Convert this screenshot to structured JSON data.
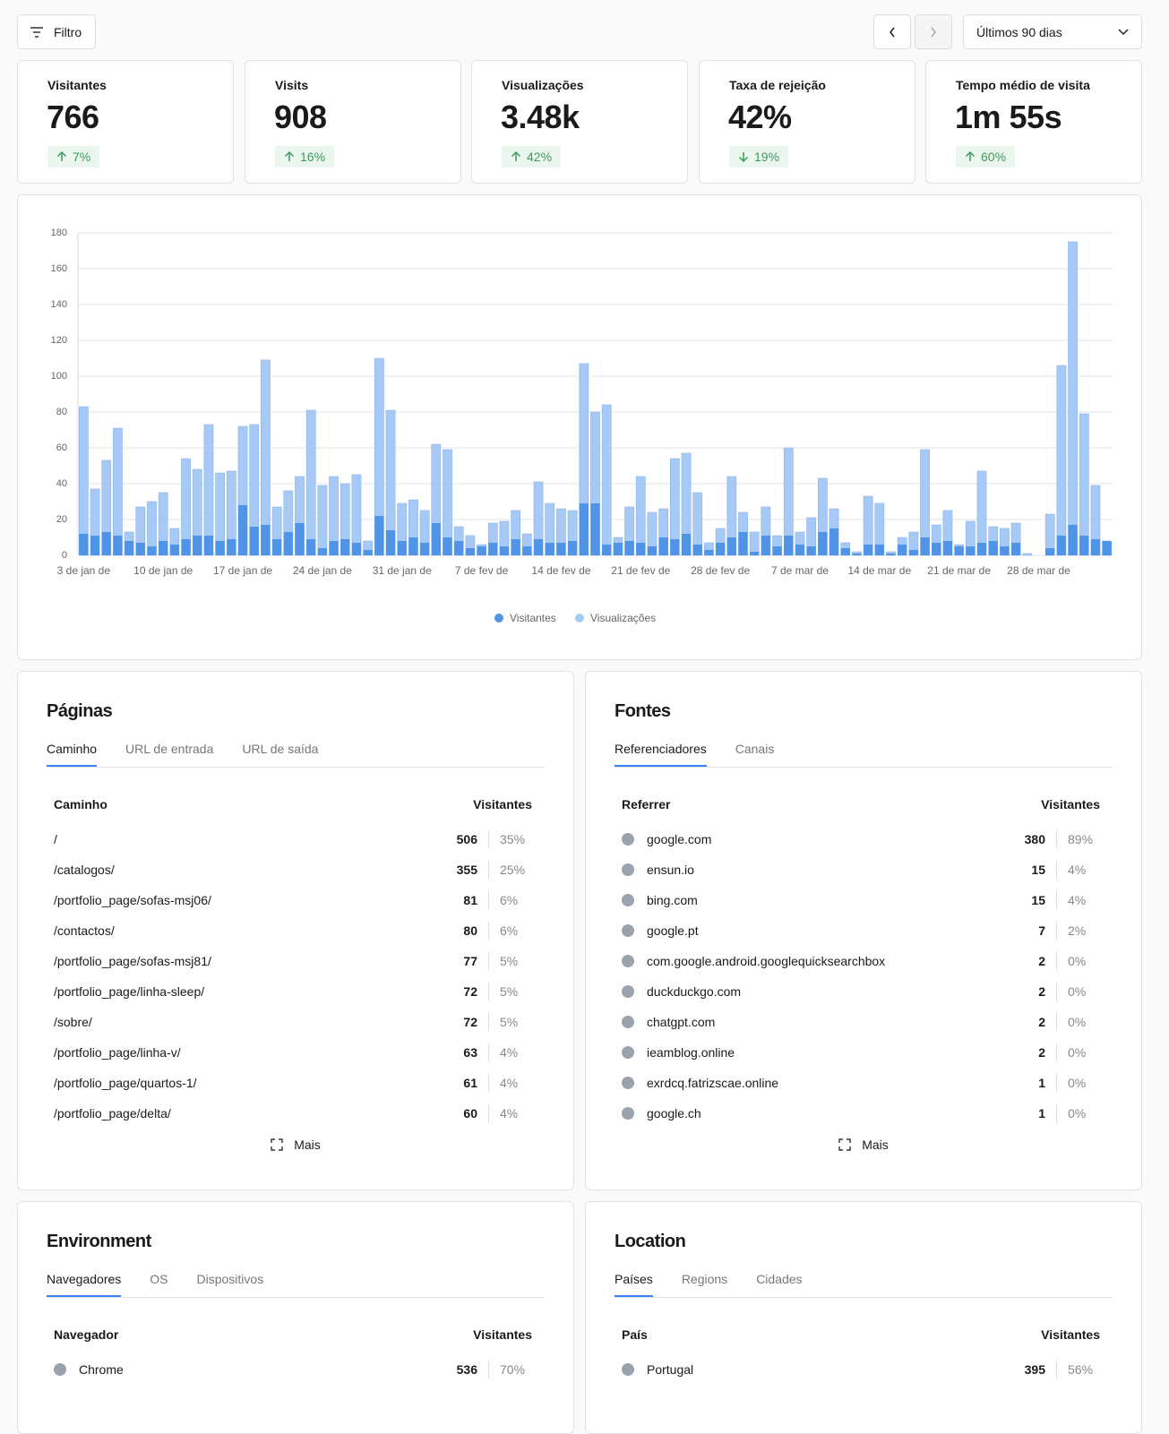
{
  "toolbar": {
    "filter": "Filtro",
    "range": "Últimos 90 dias"
  },
  "metrics": [
    {
      "label": "Visitantes",
      "value": "766",
      "change": "7%",
      "direction": "up"
    },
    {
      "label": "Visits",
      "value": "908",
      "change": "16%",
      "direction": "up"
    },
    {
      "label": "Visualizações",
      "value": "3.48k",
      "change": "42%",
      "direction": "up"
    },
    {
      "label": "Taxa de rejeição",
      "value": "42%",
      "change": "19%",
      "direction": "down"
    },
    {
      "label": "Tempo médio de visita",
      "value": "1m 55s",
      "change": "60%",
      "direction": "up"
    }
  ],
  "chart_data": {
    "type": "bar",
    "categories": [
      "3 de jan de",
      null,
      null,
      null,
      null,
      null,
      null,
      "10 de jan de",
      null,
      null,
      null,
      null,
      null,
      null,
      "17 de jan de",
      null,
      null,
      null,
      null,
      null,
      null,
      "24 de jan de",
      null,
      null,
      null,
      null,
      null,
      null,
      "31 de jan de",
      null,
      null,
      null,
      null,
      null,
      null,
      "7 de fev de",
      null,
      null,
      null,
      null,
      null,
      null,
      "14 de fev de",
      null,
      null,
      null,
      null,
      null,
      null,
      "21 de fev de",
      null,
      null,
      null,
      null,
      null,
      null,
      "28 de fev de",
      null,
      null,
      null,
      null,
      null,
      null,
      "7 de mar de",
      null,
      null,
      null,
      null,
      null,
      null,
      "14 de mar de",
      null,
      null,
      null,
      null,
      null,
      null,
      "21 de mar de",
      null,
      null,
      null,
      null,
      null,
      null,
      "28 de mar de",
      null,
      null,
      null,
      null,
      null,
      null
    ],
    "series": [
      {
        "name": "Visitantes",
        "color": "#4f94e6",
        "values": [
          12,
          11,
          13,
          11,
          8,
          7,
          5,
          8,
          6,
          9,
          11,
          11,
          8,
          9,
          28,
          16,
          17,
          9,
          13,
          18,
          9,
          4,
          8,
          9,
          7,
          3,
          22,
          14,
          8,
          10,
          7,
          18,
          10,
          8,
          4,
          5,
          7,
          5,
          9,
          5,
          9,
          7,
          7,
          8,
          29,
          29,
          6,
          7,
          8,
          7,
          5,
          10,
          9,
          12,
          6,
          3,
          7,
          10,
          13,
          2,
          11,
          5,
          11,
          6,
          5,
          13,
          15,
          4,
          1,
          6,
          6,
          1,
          6,
          3,
          10,
          7,
          8,
          5,
          5,
          7,
          8,
          5,
          7,
          0,
          0,
          4,
          11,
          17,
          11,
          9,
          8
        ]
      },
      {
        "name": "Visualizações",
        "color": "#a7c9f5",
        "values": [
          83,
          37,
          53,
          71,
          13,
          27,
          30,
          35,
          15,
          54,
          48,
          73,
          46,
          47,
          72,
          73,
          109,
          27,
          36,
          44,
          81,
          39,
          44,
          40,
          45,
          8,
          110,
          81,
          29,
          31,
          25,
          62,
          59,
          16,
          11,
          6,
          18,
          19,
          25,
          12,
          41,
          29,
          26,
          25,
          107,
          80,
          84,
          10,
          27,
          44,
          24,
          26,
          54,
          57,
          35,
          7,
          15,
          44,
          24,
          13,
          27,
          11,
          60,
          13,
          21,
          43,
          26,
          7,
          2,
          33,
          29,
          2,
          10,
          13,
          59,
          17,
          25,
          6,
          19,
          47,
          16,
          15,
          18,
          1,
          0,
          23,
          106,
          175,
          79,
          39,
          8
        ]
      }
    ],
    "ylim": [
      0,
      180
    ],
    "yticks": [
      0,
      20,
      40,
      60,
      80,
      100,
      120,
      140,
      160,
      180
    ],
    "grid": true
  },
  "pages": {
    "title": "Páginas",
    "tabs": [
      "Caminho",
      "URL de entrada",
      "URL de saída"
    ],
    "columns": [
      "Caminho",
      "Visitantes"
    ],
    "rows": [
      [
        "/",
        "506",
        "35%"
      ],
      [
        "/catalogos/",
        "355",
        "25%"
      ],
      [
        "/portfolio_page/sofas-msj06/",
        "81",
        "6%"
      ],
      [
        "/contactos/",
        "80",
        "6%"
      ],
      [
        "/portfolio_page/sofas-msj81/",
        "77",
        "5%"
      ],
      [
        "/portfolio_page/linha-sleep/",
        "72",
        "5%"
      ],
      [
        "/sobre/",
        "72",
        "5%"
      ],
      [
        "/portfolio_page/linha-v/",
        "63",
        "4%"
      ],
      [
        "/portfolio_page/quartos-1/",
        "61",
        "4%"
      ],
      [
        "/portfolio_page/delta/",
        "60",
        "4%"
      ]
    ],
    "more": "Mais"
  },
  "sources": {
    "title": "Fontes",
    "tabs": [
      "Referenciadores",
      "Canais"
    ],
    "columns": [
      "Referrer",
      "Visitantes"
    ],
    "rows": [
      [
        "google.com",
        "380",
        "89%"
      ],
      [
        "ensun.io",
        "15",
        "4%"
      ],
      [
        "bing.com",
        "15",
        "4%"
      ],
      [
        "google.pt",
        "7",
        "2%"
      ],
      [
        "com.google.android.googlequicksearchbox",
        "2",
        "0%"
      ],
      [
        "duckduckgo.com",
        "2",
        "0%"
      ],
      [
        "chatgpt.com",
        "2",
        "0%"
      ],
      [
        "ieamblog.online",
        "2",
        "0%"
      ],
      [
        "exrdcq.fatrizscae.online",
        "1",
        "0%"
      ],
      [
        "google.ch",
        "1",
        "0%"
      ]
    ],
    "more": "Mais"
  },
  "environment": {
    "title": "Environment",
    "tabs": [
      "Navegadores",
      "OS",
      "Dispositivos"
    ],
    "columns": [
      "Navegador",
      "Visitantes"
    ],
    "rows": [
      [
        "Chrome",
        "536",
        "70%"
      ]
    ]
  },
  "location": {
    "title": "Location",
    "tabs": [
      "Países",
      "Regions",
      "Cidades"
    ],
    "columns": [
      "País",
      "Visitantes"
    ],
    "rows": [
      [
        "Portugal",
        "395",
        "56%"
      ]
    ]
  }
}
